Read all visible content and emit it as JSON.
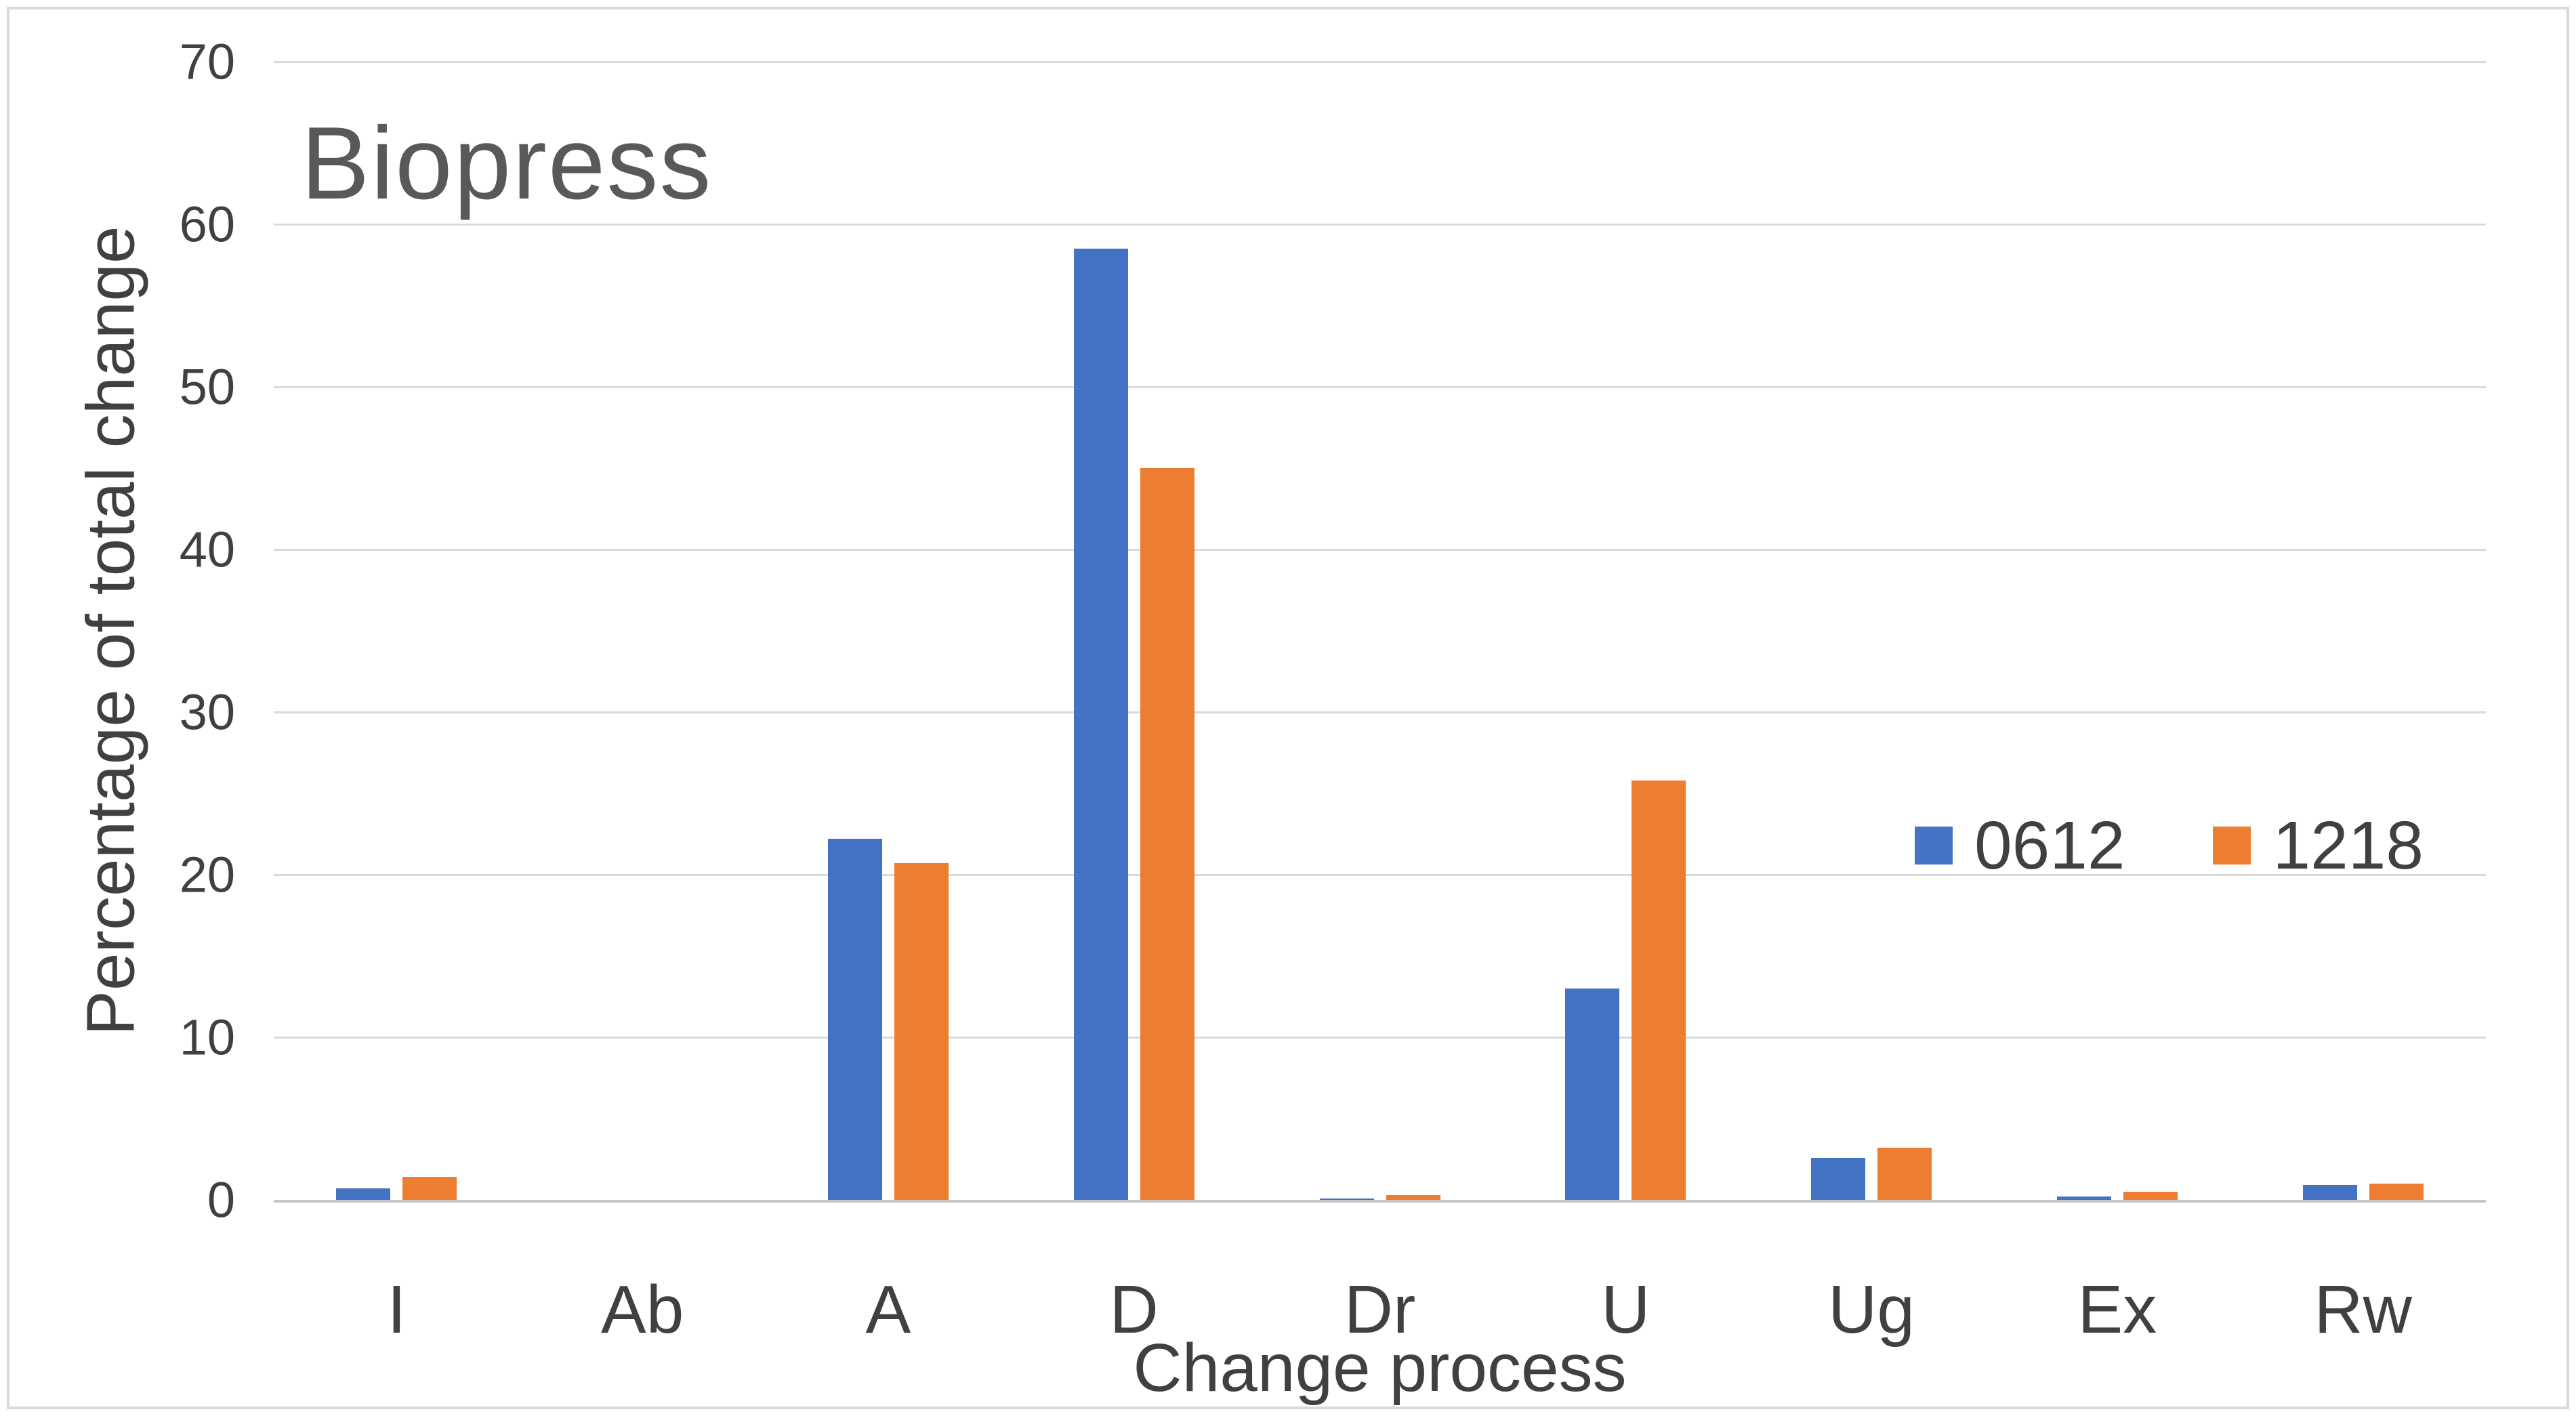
{
  "chart": {
    "title": "Biopress",
    "x_axis_title": "Change process",
    "y_axis_title": "Percentage of total change"
  },
  "chart_data": {
    "type": "bar",
    "title": "Biopress",
    "xlabel": "Change process",
    "ylabel": "Percentage of total change",
    "categories": [
      "I",
      "Ab",
      "A",
      "D",
      "Dr",
      "U",
      "Ug",
      "Ex",
      "Rw"
    ],
    "series": [
      {
        "name": "0612",
        "color": "#4472C4",
        "values": [
          0.7,
          0,
          22.2,
          58.5,
          0.1,
          13.0,
          2.6,
          0.2,
          0.9
        ]
      },
      {
        "name": "1218",
        "color": "#ED7D31",
        "values": [
          1.4,
          0,
          20.7,
          45.0,
          0.3,
          25.8,
          3.2,
          0.5,
          1.0
        ]
      }
    ],
    "ylim": [
      0,
      70
    ],
    "yticks": [
      0,
      10,
      20,
      30,
      40,
      50,
      60,
      70
    ],
    "grid": true,
    "gridline_color": "#DADADA",
    "baseline_color": "#C6C6C6",
    "legend_position": "middle-right",
    "legend_labels": [
      "0612",
      "1218"
    ]
  }
}
